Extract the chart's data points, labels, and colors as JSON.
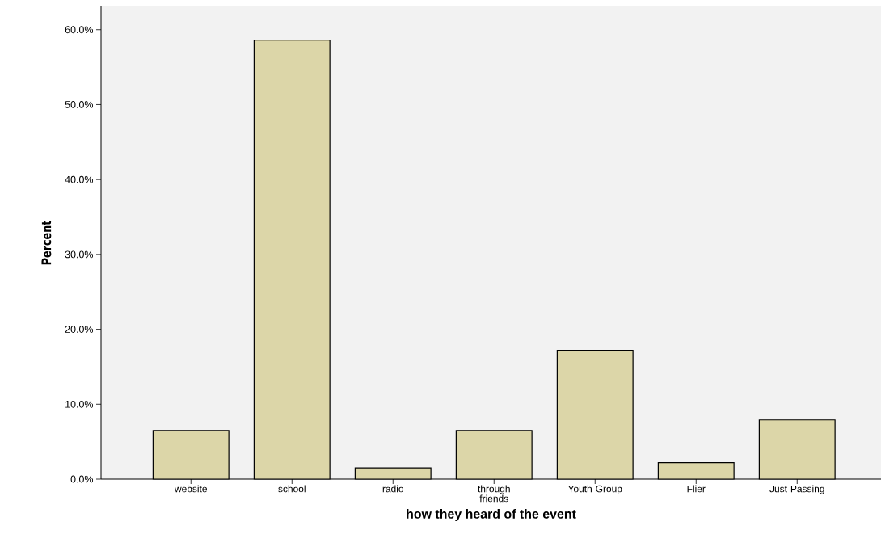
{
  "chart_data": {
    "type": "bar",
    "xlabel": "how they heard of the event",
    "ylabel": "Percent",
    "categories": [
      "website",
      "school",
      "radio",
      "through friends",
      "Youth Group",
      "Flier",
      "Just Passing"
    ],
    "values": [
      6.5,
      58.6,
      1.5,
      6.5,
      17.2,
      2.2,
      7.9
    ],
    "color": "#dcd6a8",
    "ylim": [
      0,
      63.1
    ],
    "yticks": [
      {
        "value": 0,
        "label": "0.0%"
      },
      {
        "value": 10,
        "label": "10.0%"
      },
      {
        "value": 20,
        "label": "20.0%"
      },
      {
        "value": 30,
        "label": "30.0%"
      },
      {
        "value": 40,
        "label": "40.0%"
      },
      {
        "value": 50,
        "label": "50.0%"
      },
      {
        "value": 60,
        "label": "60.0%"
      }
    ],
    "grid": false
  }
}
